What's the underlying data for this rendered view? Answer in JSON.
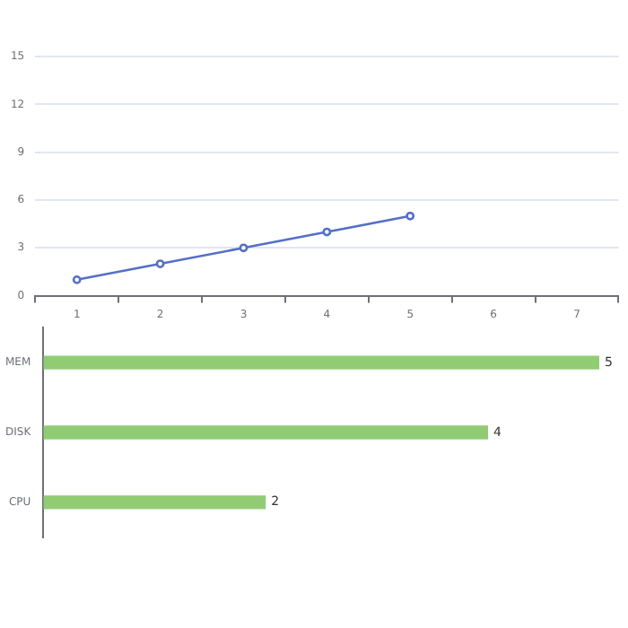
{
  "chart_data": [
    {
      "type": "line",
      "categories": [
        "1",
        "2",
        "3",
        "4",
        "5",
        "6",
        "7"
      ],
      "series": [
        {
          "color": "#5470c6",
          "values": [
            1,
            2,
            3,
            4,
            5,
            null,
            null
          ]
        }
      ],
      "ylim": [
        0,
        15
      ],
      "yticks": [
        0,
        3,
        6,
        9,
        12,
        15
      ],
      "grid": "y",
      "legend": false,
      "marker": "circle"
    },
    {
      "type": "bar",
      "orientation": "horizontal",
      "categories": [
        "MEM",
        "DISK",
        "CPU"
      ],
      "series": [
        {
          "color": "#91cc75",
          "values": [
            5,
            4,
            2
          ]
        }
      ],
      "tick_labels": "y",
      "data_labels": true,
      "grid": false,
      "legend": false
    }
  ]
}
